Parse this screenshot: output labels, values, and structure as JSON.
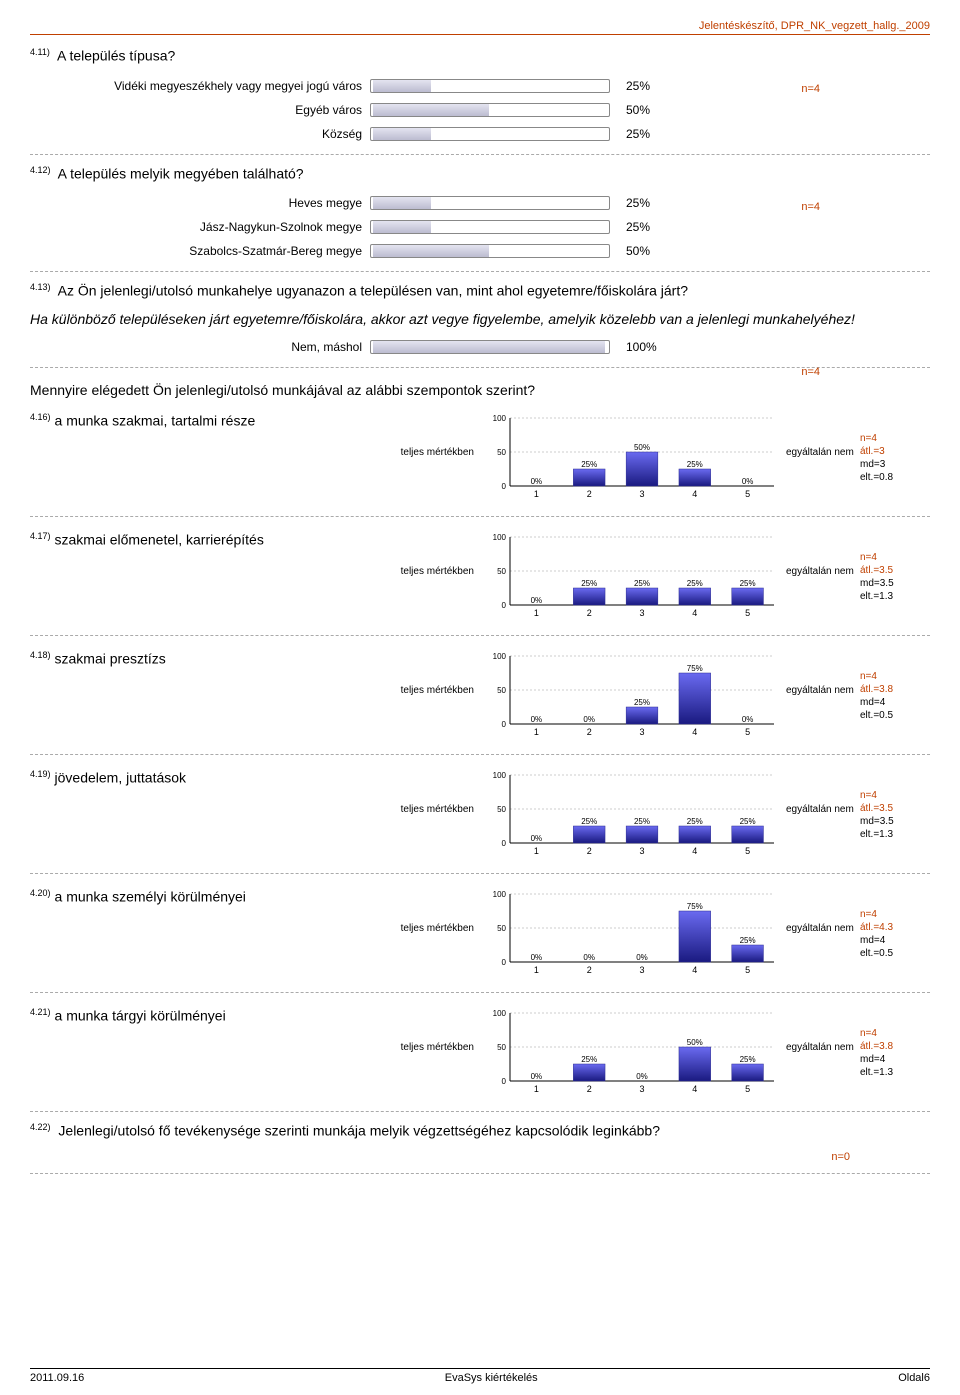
{
  "header": "Jelentéskészítő, DPR_NK_vegzett_hallg._2009",
  "q11": {
    "num": "4.11)",
    "title": "A település típusa?",
    "n_label": "n=4",
    "rows": [
      {
        "label": "Vidéki megyeszékhely vagy megyei jogú város",
        "value": 25,
        "pct": "25%"
      },
      {
        "label": "Egyéb város",
        "value": 50,
        "pct": "50%"
      },
      {
        "label": "Község",
        "value": 25,
        "pct": "25%"
      }
    ]
  },
  "q12": {
    "num": "4.12)",
    "title": "A település melyik megyében található?",
    "n_label": "n=4",
    "rows": [
      {
        "label": "Heves megye",
        "value": 25,
        "pct": "25%"
      },
      {
        "label": "Jász-Nagykun-Szolnok megye",
        "value": 25,
        "pct": "25%"
      },
      {
        "label": "Szabolcs-Szatmár-Bereg megye",
        "value": 50,
        "pct": "50%"
      }
    ]
  },
  "q13": {
    "num": "4.13)",
    "title": "Az Ön jelenlegi/utolsó munkahelye ugyanazon a településen van, mint ahol egyetemre/főiskolára járt?",
    "note": "Ha különböző településeken járt egyetemre/főiskolára, akkor azt vegye figyelembe, amelyik közelebb van a jelenlegi munkahelyéhez!",
    "n_label": "n=4",
    "rows": [
      {
        "label": "Nem, máshol",
        "value": 100,
        "pct": "100%"
      }
    ]
  },
  "section_header": "Mennyire elégedett Ön jelenlegi/utolsó munkájával az alábbi szempontok szerint?",
  "likert_left": "teljes mértékben",
  "likert_right": "egyáltalán nem",
  "likert_ylabels": [
    "100",
    "50",
    "0"
  ],
  "likert_xlabels": [
    "1",
    "2",
    "3",
    "4",
    "5"
  ],
  "likert_colors": {
    "bar_top": "#6a6af0",
    "bar_bottom": "#1a1a80",
    "axis": "#000",
    "grid_dash": "#999"
  },
  "q16": {
    "num": "4.16)",
    "title": "a munka szakmai, tartalmi része",
    "values": [
      0,
      25,
      50,
      25,
      0
    ],
    "stats": {
      "n": "n=4",
      "atl": "átl.=3",
      "md": "md=3",
      "elt": "elt.=0.8"
    }
  },
  "q17": {
    "num": "4.17)",
    "title": "szakmai előmenetel, karrierépítés",
    "values": [
      0,
      25,
      25,
      25,
      25
    ],
    "stats": {
      "n": "n=4",
      "atl": "átl.=3.5",
      "md": "md=3.5",
      "elt": "elt.=1.3"
    }
  },
  "q18": {
    "num": "4.18)",
    "title": "szakmai presztízs",
    "values": [
      0,
      0,
      25,
      75,
      0
    ],
    "stats": {
      "n": "n=4",
      "atl": "átl.=3.8",
      "md": "md=4",
      "elt": "elt.=0.5"
    }
  },
  "q19": {
    "num": "4.19)",
    "title": "jövedelem, juttatások",
    "values": [
      0,
      25,
      25,
      25,
      25
    ],
    "stats": {
      "n": "n=4",
      "atl": "átl.=3.5",
      "md": "md=3.5",
      "elt": "elt.=1.3"
    }
  },
  "q20": {
    "num": "4.20)",
    "title": "a munka személyi körülményei",
    "values": [
      0,
      0,
      0,
      75,
      25
    ],
    "stats": {
      "n": "n=4",
      "atl": "átl.=4.3",
      "md": "md=4",
      "elt": "elt.=0.5"
    }
  },
  "q21": {
    "num": "4.21)",
    "title": "a munka tárgyi körülményei",
    "values": [
      0,
      25,
      0,
      50,
      25
    ],
    "stats": {
      "n": "n=4",
      "atl": "átl.=3.8",
      "md": "md=4",
      "elt": "elt.=1.3"
    }
  },
  "q22": {
    "num": "4.22)",
    "title": "Jelenlegi/utolsó fő tevékenysége szerinti munkája melyik végzettségéhez kapcsolódik leginkább?",
    "n_label": "n=0"
  },
  "footer": {
    "left": "2011.09.16",
    "center": "EvaSys kiértékelés",
    "right": "Oldal6"
  }
}
